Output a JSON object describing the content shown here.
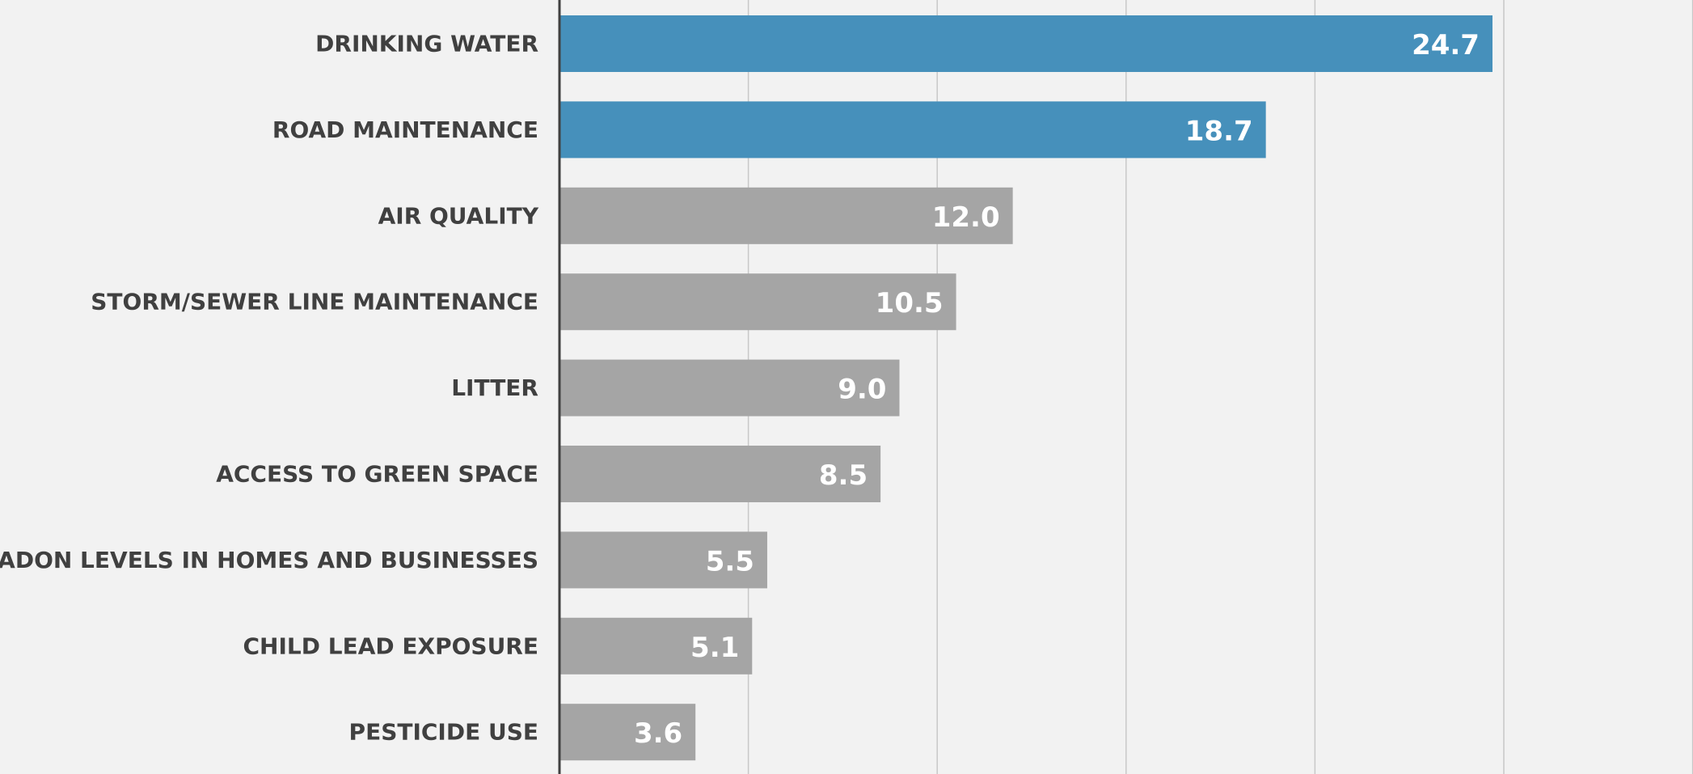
{
  "chart_data": {
    "type": "bar",
    "orientation": "horizontal",
    "categories": [
      "DRINKING WATER",
      "ROAD MAINTENANCE",
      "AIR QUALITY",
      "STORM/SEWER LINE MAINTENANCE",
      "LITTER",
      "ACCESS TO GREEN SPACE",
      "RADON LEVELS IN HOMES AND BUSINESSES",
      "CHILD LEAD EXPOSURE",
      "PESTICIDE USE"
    ],
    "values": [
      24.7,
      18.7,
      12.0,
      10.5,
      9.0,
      8.5,
      5.5,
      5.1,
      3.6
    ],
    "value_labels": [
      "24.7",
      "18.7",
      "12.0",
      "10.5",
      "9.0",
      "8.5",
      "5.5",
      "5.1",
      "3.6"
    ],
    "highlighted_categories": [
      "DRINKING WATER",
      "ROAD MAINTENANCE"
    ],
    "colors": {
      "highlight": "#4690bb",
      "default": "#a5a5a5",
      "value_label": "#ffffff",
      "category_label": "#404040",
      "background": "#f2f2f2",
      "gridline": "#c8c8c8",
      "axis": "#404040"
    },
    "title": "",
    "xlabel": "",
    "ylabel": "",
    "xlim": [
      0,
      30
    ],
    "x_grid_step": 5,
    "grid": true,
    "legend": "none"
  }
}
